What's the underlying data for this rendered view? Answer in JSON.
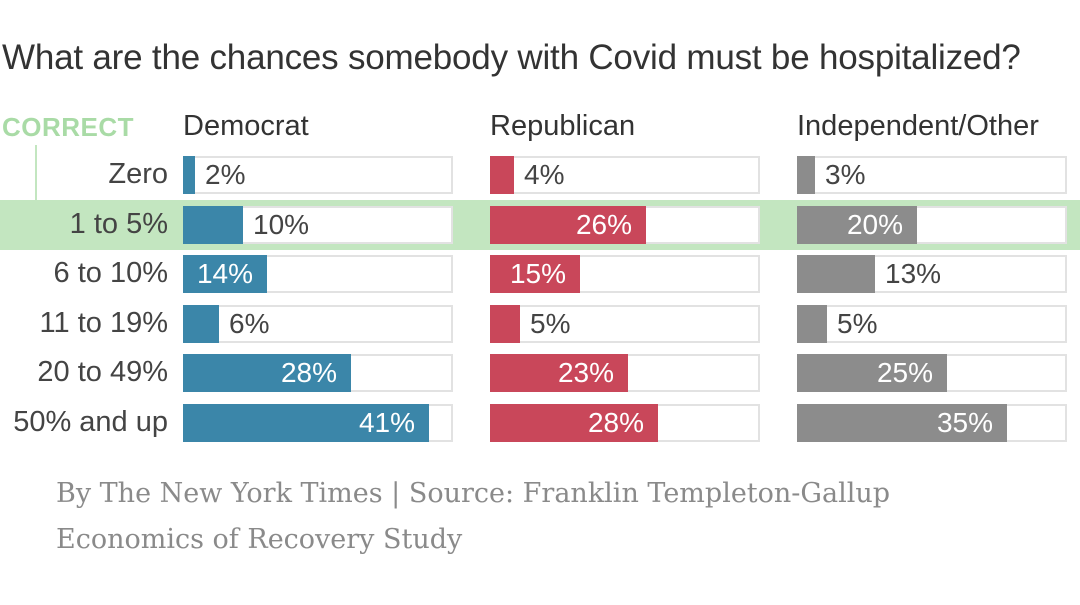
{
  "title": "What are the chances somebody with Covid must be hospitalized?",
  "correct_label": "CORRECT",
  "footer": {
    "line1": "By The New York Times | Source: Franklin Templeton-Gallup",
    "line2": "Economics of Recovery Study"
  },
  "colors": {
    "democrat": "#3b86a9",
    "republican": "#c9475a",
    "independent": "#8c8c8c",
    "correct_highlight": "#c3e6c0"
  },
  "chart_data": {
    "type": "bar",
    "orientation": "horizontal",
    "title": "What are the chances somebody with Covid must be hospitalized?",
    "categories": [
      "Zero",
      "1 to 5%",
      "6 to 10%",
      "11 to 19%",
      "20 to 49%",
      "50% and up"
    ],
    "correct_category": "1 to 5%",
    "xlim": [
      0,
      100
    ],
    "series": [
      {
        "name": "Democrat",
        "values": [
          2,
          10,
          14,
          6,
          28,
          41
        ],
        "labels": [
          "2%",
          "10%",
          "14%",
          "6%",
          "28%",
          "41%"
        ]
      },
      {
        "name": "Republican",
        "values": [
          4,
          26,
          15,
          5,
          23,
          28
        ],
        "labels": [
          "4%",
          "26%",
          "15%",
          "5%",
          "23%",
          "28%"
        ]
      },
      {
        "name": "Independent/Other",
        "values": [
          3,
          20,
          13,
          5,
          25,
          35
        ],
        "labels": [
          "3%",
          "20%",
          "13%",
          "5%",
          "25%",
          "35%"
        ]
      }
    ]
  }
}
